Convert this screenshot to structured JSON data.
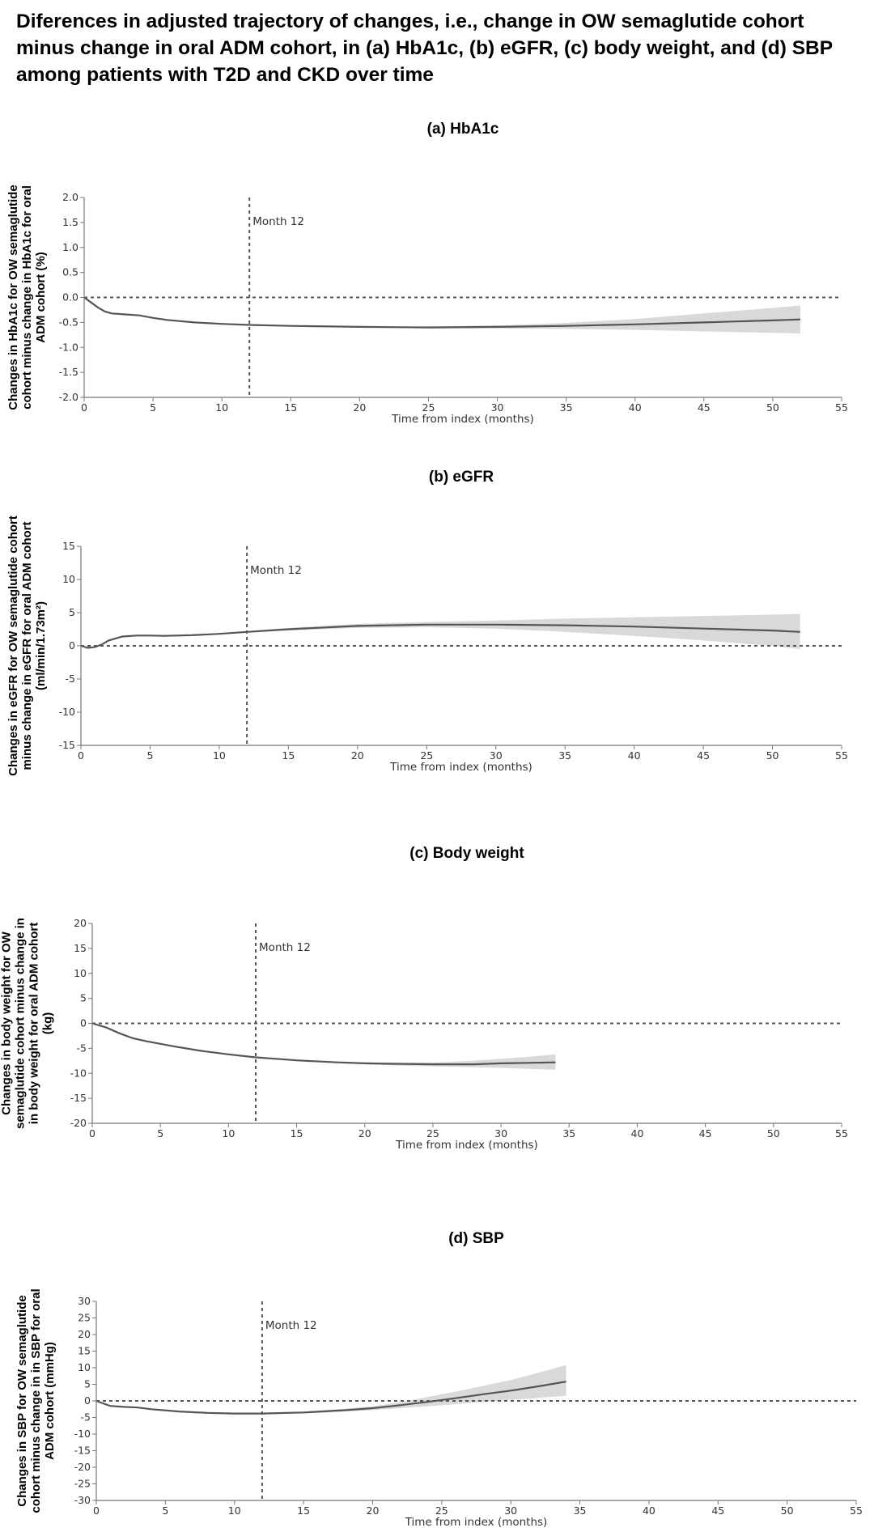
{
  "figure": {
    "title": "Diferences in adjusted trajectory of changes, i.e., change in OW semaglutide cohort minus change in oral ADM cohort, in (a) HbA1c, (b) eGFR, (c) body weight, and (d) SBP among patients with T2D and CKD over time"
  },
  "colors": {
    "line": "#555555",
    "band": "#d9d9d9",
    "reference": "#555555",
    "axis": "#777777",
    "text": "#333333"
  },
  "chart_data": [
    {
      "type": "line",
      "title": "(a) HbA1c",
      "xlabel": "Time from index (months)",
      "ylabel": [
        "Changes in HbA1c for OW semaglutide",
        "cohort minus change in HbA1c for oral",
        "ADM cohort (%)"
      ],
      "xlim": [
        0,
        55
      ],
      "ylim": [
        -2.0,
        2.0
      ],
      "xticks": [
        0,
        5,
        10,
        15,
        20,
        25,
        30,
        35,
        40,
        45,
        50,
        55
      ],
      "yticks": [
        "2.0",
        "1.5",
        "1.0",
        "0.5",
        "0.0",
        "-0.5",
        "-1.0",
        "-1.5",
        "-2.0"
      ],
      "yticks_values": [
        2.0,
        1.5,
        1.0,
        0.5,
        0.0,
        -0.5,
        -1.0,
        -1.5,
        -2.0
      ],
      "vline": {
        "x": 12,
        "label": "Month 12"
      },
      "hline": 0,
      "series": [
        {
          "x": [
            0,
            0.5,
            1,
            1.5,
            2,
            3,
            4,
            5,
            6,
            8,
            10,
            12,
            15,
            20,
            25,
            30,
            35,
            40,
            45,
            50,
            52
          ],
          "y": [
            0,
            -0.1,
            -0.2,
            -0.28,
            -0.32,
            -0.34,
            -0.36,
            -0.41,
            -0.45,
            -0.5,
            -0.53,
            -0.55,
            -0.57,
            -0.59,
            -0.6,
            -0.59,
            -0.57,
            -0.54,
            -0.5,
            -0.46,
            -0.44
          ],
          "lower": [
            0,
            -0.1,
            -0.2,
            -0.28,
            -0.32,
            -0.34,
            -0.36,
            -0.41,
            -0.45,
            -0.5,
            -0.53,
            -0.55,
            -0.58,
            -0.6,
            -0.62,
            -0.62,
            -0.63,
            -0.65,
            -0.68,
            -0.71,
            -0.72
          ],
          "upper": [
            0,
            -0.1,
            -0.2,
            -0.28,
            -0.32,
            -0.34,
            -0.36,
            -0.41,
            -0.45,
            -0.5,
            -0.53,
            -0.55,
            -0.56,
            -0.58,
            -0.58,
            -0.56,
            -0.51,
            -0.43,
            -0.32,
            -0.21,
            -0.16
          ]
        }
      ]
    },
    {
      "type": "line",
      "title": "(b) eGFR",
      "xlabel": "Time from index (months)",
      "ylabel": [
        "Changes in eGFR for OW semaglutide cohort",
        "minus change in eGFR for oral ADM cohort",
        "(ml/min/1.73m²)"
      ],
      "xlim": [
        0,
        55
      ],
      "ylim": [
        -15,
        15
      ],
      "xticks": [
        0,
        5,
        10,
        15,
        20,
        25,
        30,
        35,
        40,
        45,
        50,
        55
      ],
      "yticks": [
        "15",
        "10",
        "5",
        "0",
        "-5",
        "-10",
        "-15"
      ],
      "yticks_values": [
        15,
        10,
        5,
        0,
        -5,
        -10,
        -15
      ],
      "vline": {
        "x": 12,
        "label": "Month 12"
      },
      "hline": 0,
      "series": [
        {
          "x": [
            0,
            0.5,
            1,
            1.5,
            2,
            3,
            4,
            5,
            6,
            8,
            10,
            12,
            15,
            20,
            25,
            30,
            35,
            40,
            45,
            50,
            52
          ],
          "y": [
            0,
            -0.3,
            -0.2,
            0.2,
            0.8,
            1.4,
            1.55,
            1.55,
            1.5,
            1.6,
            1.8,
            2.1,
            2.5,
            3.0,
            3.2,
            3.2,
            3.1,
            2.9,
            2.6,
            2.3,
            2.1
          ],
          "lower": [
            0,
            -0.3,
            -0.2,
            0.2,
            0.8,
            1.4,
            1.55,
            1.55,
            1.5,
            1.6,
            1.8,
            2.0,
            2.3,
            2.7,
            2.8,
            2.6,
            2.1,
            1.5,
            0.8,
            0.0,
            -0.5
          ],
          "upper": [
            0,
            -0.3,
            -0.2,
            0.2,
            0.8,
            1.4,
            1.55,
            1.55,
            1.5,
            1.6,
            1.8,
            2.2,
            2.7,
            3.3,
            3.6,
            3.8,
            4.1,
            4.3,
            4.5,
            4.7,
            4.8
          ]
        }
      ]
    },
    {
      "type": "line",
      "title": "(c) Body weight",
      "xlabel": "Time from index (months)",
      "ylabel": [
        "Changes in body weight for OW",
        "semaglutide cohort minus change in",
        "in body weight for oral ADM cohort",
        "(kg)"
      ],
      "xlim": [
        0,
        55
      ],
      "ylim": [
        -20,
        20
      ],
      "xticks": [
        0,
        5,
        10,
        15,
        20,
        25,
        30,
        35,
        40,
        45,
        50,
        55
      ],
      "yticks": [
        "20",
        "15",
        "10",
        "5",
        "0",
        "-5",
        "-10",
        "-15",
        "-20"
      ],
      "yticks_values": [
        20,
        15,
        10,
        5,
        0,
        -5,
        -10,
        -15,
        -20
      ],
      "vline": {
        "x": 12,
        "label": "Month 12"
      },
      "hline": 0,
      "series": [
        {
          "x": [
            0,
            1,
            2,
            3,
            4,
            5,
            6,
            8,
            10,
            12,
            15,
            18,
            20,
            22,
            25,
            28,
            30,
            32,
            34
          ],
          "y": [
            0,
            -0.8,
            -2.0,
            -3.0,
            -3.6,
            -4.1,
            -4.6,
            -5.5,
            -6.2,
            -6.8,
            -7.4,
            -7.8,
            -8.0,
            -8.1,
            -8.2,
            -8.2,
            -8.0,
            -7.9,
            -7.8
          ],
          "lower": [
            0,
            -0.8,
            -2.0,
            -3.0,
            -3.6,
            -4.1,
            -4.6,
            -5.5,
            -6.2,
            -6.9,
            -7.5,
            -7.9,
            -8.2,
            -8.4,
            -8.6,
            -8.8,
            -8.9,
            -9.1,
            -9.3
          ],
          "upper": [
            0,
            -0.8,
            -2.0,
            -3.0,
            -3.6,
            -4.1,
            -4.6,
            -5.5,
            -6.2,
            -6.7,
            -7.3,
            -7.7,
            -7.8,
            -7.8,
            -7.8,
            -7.5,
            -7.1,
            -6.7,
            -6.2
          ]
        }
      ]
    },
    {
      "type": "line",
      "title": "(d) SBP",
      "xlabel": "Time from index (months)",
      "ylabel": [
        "Changes in SBP for OW semaglutide",
        "cohort minus change in in SBP for oral",
        "ADM cohort (mmHg)"
      ],
      "xlim": [
        0,
        55
      ],
      "ylim": [
        -30,
        30
      ],
      "xticks": [
        0,
        5,
        10,
        15,
        20,
        25,
        30,
        35,
        40,
        45,
        50,
        55
      ],
      "yticks": [
        "30",
        "25",
        "20",
        "15",
        "10",
        "5",
        "0",
        "-5",
        "-10",
        "-15",
        "-20",
        "-25",
        "-30"
      ],
      "yticks_values": [
        30,
        25,
        20,
        15,
        10,
        5,
        0,
        -5,
        -10,
        -15,
        -20,
        -25,
        -30
      ],
      "vline": {
        "x": 12,
        "label": "Month 12"
      },
      "hline": 0,
      "series": [
        {
          "x": [
            0,
            1,
            2,
            3,
            4,
            6,
            8,
            10,
            12,
            15,
            18,
            20,
            22,
            24,
            26,
            28,
            30,
            32,
            34
          ],
          "y": [
            0,
            -1.5,
            -1.8,
            -2.0,
            -2.5,
            -3.2,
            -3.6,
            -3.8,
            -3.8,
            -3.5,
            -2.8,
            -2.2,
            -1.3,
            -0.3,
            0.8,
            2.0,
            3.1,
            4.4,
            5.8
          ],
          "lower": [
            0,
            -1.5,
            -1.8,
            -2.0,
            -2.5,
            -3.2,
            -3.6,
            -3.9,
            -4.0,
            -3.8,
            -3.2,
            -2.8,
            -2.2,
            -1.6,
            -1.0,
            -0.3,
            0.3,
            0.9,
            1.5
          ],
          "upper": [
            0,
            -1.5,
            -1.8,
            -2.0,
            -2.5,
            -3.2,
            -3.6,
            -3.7,
            -3.6,
            -3.2,
            -2.4,
            -1.6,
            -0.4,
            1.2,
            2.8,
            4.5,
            6.3,
            8.5,
            10.8
          ]
        }
      ]
    }
  ]
}
